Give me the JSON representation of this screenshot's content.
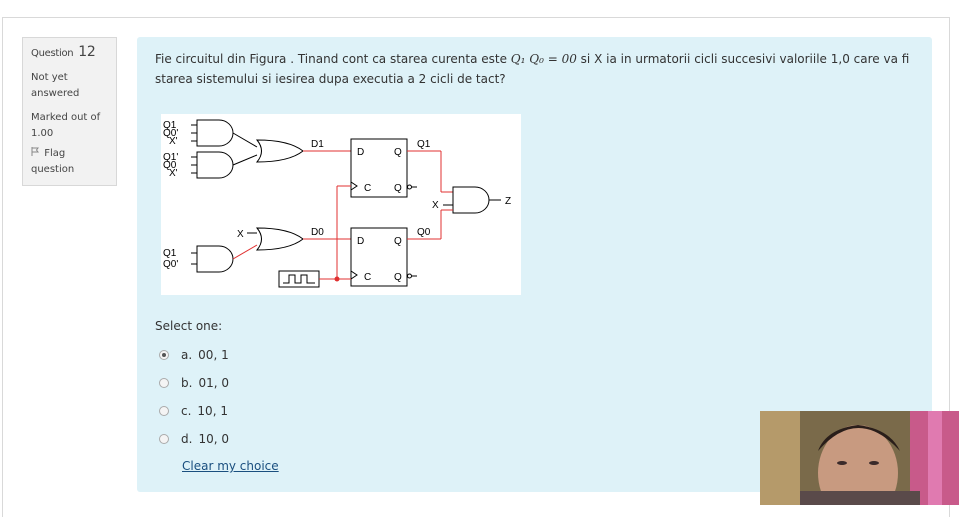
{
  "info": {
    "question_label": "Question",
    "question_number": "12",
    "status": "Not yet answered",
    "marked_out_of": "Marked out of 1.00",
    "flag_label": "Flag question",
    "flag_icon": "flag-icon"
  },
  "question": {
    "text_before": "Fie circuitul din Figura . Tinand cont ca starea curenta este ",
    "math": "Q₁ Q₀ = 00",
    "text_after": " si X ia in urmatorii cicli succesivi valoriile 1,0 care va fi starea sistemului si iesirea dupa executia a 2 cicli de tact?"
  },
  "circuit": {
    "and_inputs_1": [
      "Q1",
      "Q0'",
      "X'"
    ],
    "and_inputs_2": [
      "Q1'",
      "Q0",
      "X'"
    ],
    "and_inputs_3": [
      "Q1",
      "Q0'"
    ],
    "x_label": "X",
    "d1_label": "D1",
    "d0_label": "D0",
    "ff_d": "D",
    "ff_q": "Q",
    "ff_c": "C",
    "q1_out": "Q1",
    "q0_out": "Q0",
    "z_label": "Z",
    "wire_color": "#e03030"
  },
  "select_one": "Select one:",
  "answers": [
    {
      "letter": "a.",
      "text": "00, 1",
      "checked": true
    },
    {
      "letter": "b.",
      "text": "01, 0",
      "checked": false
    },
    {
      "letter": "c.",
      "text": "10, 1",
      "checked": false
    },
    {
      "letter": "d.",
      "text": "10, 0",
      "checked": false
    }
  ],
  "clear_choice": "Clear my choice"
}
